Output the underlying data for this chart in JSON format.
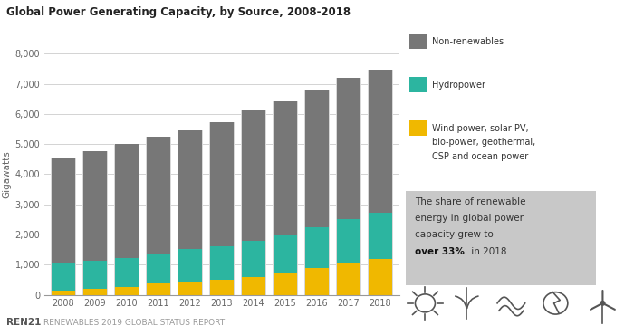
{
  "title": "Global Power Generating Capacity, by Source, 2008-2018",
  "ylabel": "Gigawatts",
  "years": [
    2008,
    2009,
    2010,
    2011,
    2012,
    2013,
    2014,
    2015,
    2016,
    2017,
    2018
  ],
  "non_renewables": [
    3520,
    3620,
    3780,
    3860,
    3940,
    4100,
    4300,
    4400,
    4550,
    4680,
    4730
  ],
  "hydropower": [
    900,
    940,
    970,
    1010,
    1060,
    1100,
    1200,
    1280,
    1350,
    1460,
    1530
  ],
  "other_renewables": [
    140,
    190,
    260,
    370,
    450,
    510,
    600,
    720,
    890,
    1050,
    1200
  ],
  "bar_color_non_renewables": "#777777",
  "bar_color_hydropower": "#2cb5a0",
  "bar_color_other": "#f0b800",
  "bar_color_shadow": "#d8d8d8",
  "background_color": "#ffffff",
  "ylim": [
    0,
    8000
  ],
  "yticks": [
    0,
    1000,
    2000,
    3000,
    4000,
    5000,
    6000,
    7000,
    8000
  ],
  "legend_labels": [
    "Non-renewables",
    "Hydropower",
    "Wind power, solar PV,\nbio-power, geothermal,\nCSP and ocean power"
  ],
  "footer_text": "RENEWABLES 2019 GLOBAL STATUS REPORT",
  "footer_brand": "REN21"
}
